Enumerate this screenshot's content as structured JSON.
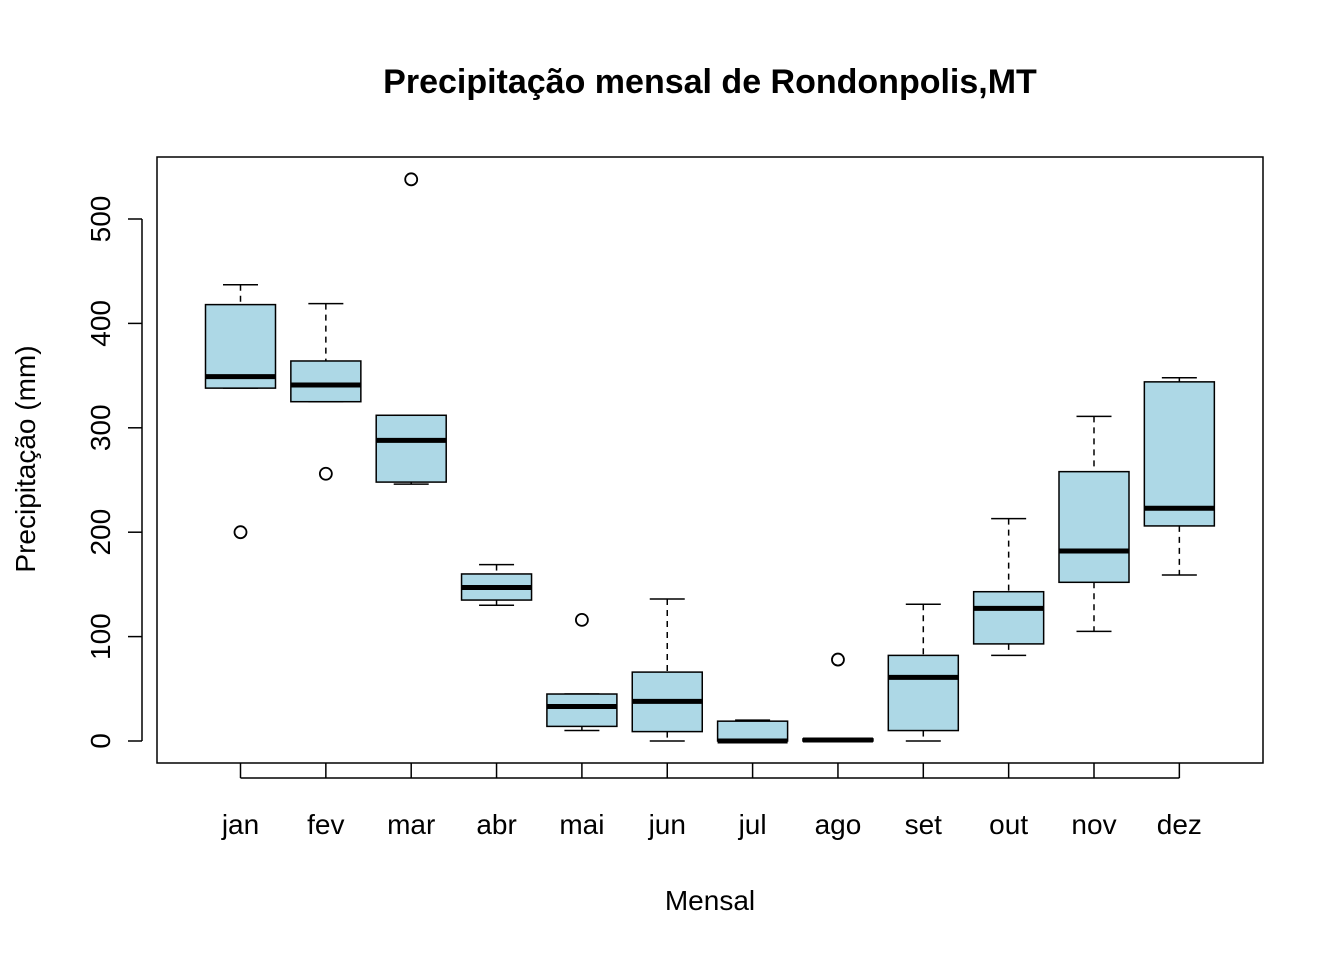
{
  "chart_data": {
    "type": "boxplot",
    "title": "Precipitação mensal de Rondonpolis,MT",
    "xlabel": "Mensal",
    "ylabel": "Precipitação (mm)",
    "ylim": [
      -20,
      560
    ],
    "yticks": [
      0,
      100,
      200,
      300,
      400,
      500
    ],
    "box_color": "#ADD8E6",
    "categories": [
      "jan",
      "fev",
      "mar",
      "abr",
      "mai",
      "jun",
      "jul",
      "ago",
      "set",
      "out",
      "nov",
      "dez"
    ],
    "series": [
      {
        "name": "jan",
        "min": 338,
        "q1": 338,
        "median": 349,
        "q3": 418,
        "max": 437,
        "outliers": [
          200
        ]
      },
      {
        "name": "fev",
        "min": 325,
        "q1": 325,
        "median": 341,
        "q3": 364,
        "max": 419,
        "outliers": [
          256
        ]
      },
      {
        "name": "mar",
        "min": 246,
        "q1": 248,
        "median": 288,
        "q3": 312,
        "max": 312,
        "outliers": [
          538
        ]
      },
      {
        "name": "abr",
        "min": 130,
        "q1": 135,
        "median": 147,
        "q3": 160,
        "max": 169,
        "outliers": []
      },
      {
        "name": "mai",
        "min": 10,
        "q1": 14,
        "median": 33,
        "q3": 45,
        "max": 45,
        "outliers": [
          116
        ]
      },
      {
        "name": "jun",
        "min": 0,
        "q1": 9,
        "median": 38,
        "q3": 66,
        "max": 136,
        "outliers": []
      },
      {
        "name": "jul",
        "min": 0,
        "q1": 0,
        "median": 0,
        "q3": 19,
        "max": 20,
        "outliers": []
      },
      {
        "name": "ago",
        "min": 0,
        "q1": 0,
        "median": 1,
        "q3": 2,
        "max": 2,
        "outliers": [
          78
        ]
      },
      {
        "name": "set",
        "min": 0,
        "q1": 10,
        "median": 61,
        "q3": 82,
        "max": 131,
        "outliers": []
      },
      {
        "name": "out",
        "min": 82,
        "q1": 93,
        "median": 127,
        "q3": 143,
        "max": 213,
        "outliers": []
      },
      {
        "name": "nov",
        "min": 105,
        "q1": 152,
        "median": 182,
        "q3": 258,
        "max": 311,
        "outliers": []
      },
      {
        "name": "dez",
        "min": 159,
        "q1": 206,
        "median": 223,
        "q3": 344,
        "max": 348,
        "outliers": []
      }
    ]
  }
}
